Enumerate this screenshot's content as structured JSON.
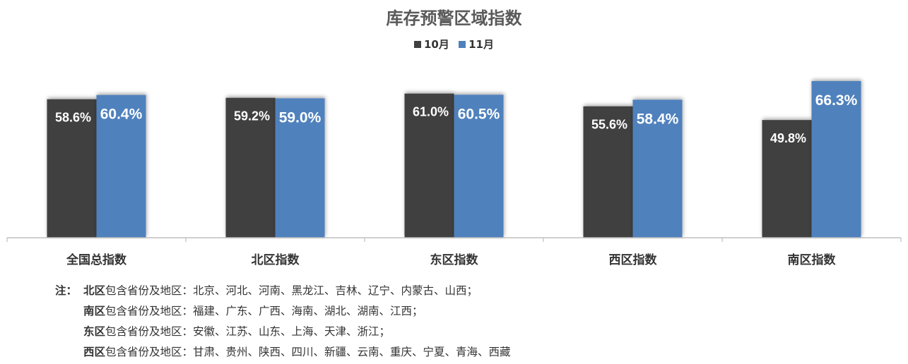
{
  "chart_data": {
    "type": "bar",
    "title": "库存预警区域指数",
    "categories": [
      "全国总指数",
      "北区指数",
      "东区指数",
      "西区指数",
      "南区指数"
    ],
    "series": [
      {
        "name": "10月",
        "color": "#404040",
        "values": [
          58.6,
          59.2,
          61.0,
          55.6,
          49.8
        ],
        "labels": [
          "58.6%",
          "59.2%",
          "61.0%",
          "55.6%",
          "49.8%"
        ]
      },
      {
        "name": "11月",
        "color": "#4f81bd",
        "values": [
          60.4,
          59.0,
          60.5,
          58.4,
          66.3
        ],
        "labels": [
          "60.4%",
          "59.0%",
          "60.5%",
          "58.4%",
          "66.3%"
        ]
      }
    ],
    "ylim": [
      0,
      70
    ],
    "grid": false,
    "legend_position": "top"
  },
  "notes": {
    "prefix": "注：",
    "items": [
      {
        "region": "北区",
        "label": "包含省份及地区：",
        "provinces": "北京、河北、河南、黑龙江、吉林、辽宁、内蒙古、山西；"
      },
      {
        "region": "南区",
        "label": "包含省份及地区：",
        "provinces": "福建、广东、广西、海南、湖北、湖南、江西；"
      },
      {
        "region": "东区",
        "label": "包含省份及地区：",
        "provinces": "安徽、江苏、山东、上海、天津、浙江；"
      },
      {
        "region": "西区",
        "label": "包含省份及地区：",
        "provinces": "甘肃、贵州、陕西、四川、新疆、云南、重庆、宁夏、青海、西藏"
      }
    ]
  }
}
